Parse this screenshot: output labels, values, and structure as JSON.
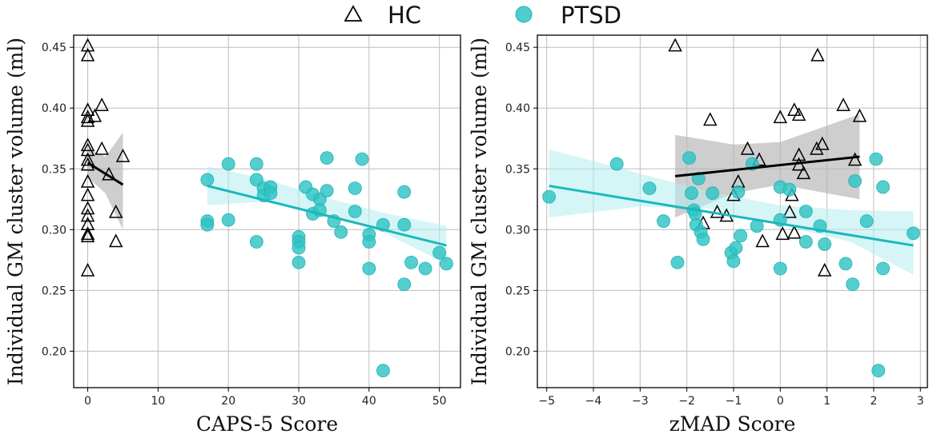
{
  "legend": {
    "hc_label": "HC",
    "ptsd_label": "PTSD",
    "hc_marker_icon": "open-triangle",
    "ptsd_marker_icon": "filled-circle"
  },
  "colors": {
    "hc": "#000000",
    "ptsd": "#30c3c3",
    "ptsd_line": "#1ab8bb",
    "ptsd_band": "#b3ecee",
    "hc_band": "#b3b3b3"
  },
  "chart_data": [
    {
      "type": "scatter",
      "id": "left",
      "xlabel": "CAPS-5 Score",
      "ylabel": "Individual GM cluster volume (ml)",
      "xlim": [
        -2,
        53
      ],
      "ylim": [
        0.17,
        0.46
      ],
      "xticks": [
        0,
        10,
        20,
        30,
        40,
        50
      ],
      "xticklabels": [
        "0",
        "10",
        "20",
        "30",
        "40",
        "50"
      ],
      "yticks": [
        0.2,
        0.25,
        0.3,
        0.35,
        0.4,
        0.45
      ],
      "yticklabels": [
        "0.20",
        "0.25",
        "0.30",
        "0.35",
        "0.40",
        "0.45"
      ],
      "grid": true,
      "series": [
        {
          "name": "HC",
          "marker": "triangle",
          "points": [
            [
              0,
              0.451
            ],
            [
              0,
              0.443
            ],
            [
              0,
              0.398
            ],
            [
              0,
              0.392
            ],
            [
              0,
              0.389
            ],
            [
              0,
              0.369
            ],
            [
              0,
              0.365
            ],
            [
              0,
              0.357
            ],
            [
              0,
              0.353
            ],
            [
              0,
              0.339
            ],
            [
              0,
              0.328
            ],
            [
              0,
              0.317
            ],
            [
              0,
              0.311
            ],
            [
              0,
              0.304
            ],
            [
              0,
              0.296
            ],
            [
              0,
              0.294
            ],
            [
              0,
              0.266
            ],
            [
              1,
              0.393
            ],
            [
              2,
              0.402
            ],
            [
              2,
              0.366
            ],
            [
              3,
              0.345
            ],
            [
              4,
              0.314
            ],
            [
              4,
              0.29
            ],
            [
              5,
              0.36
            ]
          ],
          "fit": {
            "x": [
              0,
              5
            ],
            "y": [
              0.355,
              0.337
            ]
          },
          "band": {
            "x": [
              0,
              2.5,
              5
            ],
            "lower": [
              0.343,
              0.33,
              0.3
            ],
            "upper": [
              0.367,
              0.36,
              0.38
            ]
          }
        },
        {
          "name": "PTSD",
          "marker": "circle",
          "points": [
            [
              17,
              0.341
            ],
            [
              17,
              0.307
            ],
            [
              17,
              0.304
            ],
            [
              20,
              0.354
            ],
            [
              20,
              0.308
            ],
            [
              24,
              0.354
            ],
            [
              24,
              0.341
            ],
            [
              24,
              0.29
            ],
            [
              25,
              0.334
            ],
            [
              25,
              0.328
            ],
            [
              26,
              0.335
            ],
            [
              26,
              0.33
            ],
            [
              30,
              0.294
            ],
            [
              30,
              0.29
            ],
            [
              30,
              0.285
            ],
            [
              30,
              0.273
            ],
            [
              31,
              0.335
            ],
            [
              32,
              0.313
            ],
            [
              32,
              0.329
            ],
            [
              33,
              0.325
            ],
            [
              33,
              0.316
            ],
            [
              34,
              0.359
            ],
            [
              34,
              0.332
            ],
            [
              35,
              0.307
            ],
            [
              36,
              0.298
            ],
            [
              38,
              0.334
            ],
            [
              38,
              0.315
            ],
            [
              39,
              0.358
            ],
            [
              40,
              0.296
            ],
            [
              40,
              0.29
            ],
            [
              40,
              0.268
            ],
            [
              42,
              0.304
            ],
            [
              42,
              0.184
            ],
            [
              45,
              0.331
            ],
            [
              45,
              0.304
            ],
            [
              45,
              0.255
            ],
            [
              46,
              0.273
            ],
            [
              48,
              0.268
            ],
            [
              50,
              0.281
            ],
            [
              51,
              0.272
            ]
          ],
          "fit": {
            "x": [
              17,
              51
            ],
            "y": [
              0.336,
              0.287
            ]
          },
          "band": {
            "x": [
              17,
              25,
              34,
              42,
              51
            ],
            "lower": [
              0.32,
              0.323,
              0.312,
              0.298,
              0.272
            ],
            "upper": [
              0.352,
              0.342,
              0.326,
              0.314,
              0.303
            ]
          }
        }
      ]
    },
    {
      "type": "scatter",
      "id": "right",
      "xlabel": "zMAD Score",
      "ylabel": "Individual GM cluster volume (ml)",
      "xlim": [
        -5.2,
        3.15
      ],
      "ylim": [
        0.17,
        0.46
      ],
      "xticks": [
        -5,
        -4,
        -3,
        -2,
        -1,
        0,
        1,
        2,
        3
      ],
      "xticklabels": [
        "−5",
        "−4",
        "−3",
        "−2",
        "−1",
        "0",
        "1",
        "2",
        "3"
      ],
      "yticks": [
        0.2,
        0.25,
        0.3,
        0.35,
        0.4,
        0.45
      ],
      "yticklabels": [
        "0.20",
        "0.25",
        "0.30",
        "0.35",
        "0.40",
        "0.45"
      ],
      "grid": true,
      "series": [
        {
          "name": "HC",
          "marker": "triangle",
          "points": [
            [
              -2.25,
              0.451
            ],
            [
              0.8,
              0.443
            ],
            [
              1.35,
              0.402
            ],
            [
              0.3,
              0.398
            ],
            [
              0.4,
              0.394
            ],
            [
              1.7,
              0.393
            ],
            [
              0,
              0.392
            ],
            [
              -1.5,
              0.39
            ],
            [
              0.9,
              0.37
            ],
            [
              0.78,
              0.366
            ],
            [
              -0.7,
              0.366
            ],
            [
              0.4,
              0.361
            ],
            [
              -0.45,
              0.357
            ],
            [
              1.6,
              0.357
            ],
            [
              0.4,
              0.353
            ],
            [
              0.5,
              0.346
            ],
            [
              -0.9,
              0.339
            ],
            [
              0.25,
              0.328
            ],
            [
              -1,
              0.328
            ],
            [
              -1.65,
              0.305
            ],
            [
              -1.35,
              0.314
            ],
            [
              0.2,
              0.314
            ],
            [
              -1.15,
              0.311
            ],
            [
              0.05,
              0.296
            ],
            [
              0.3,
              0.297
            ],
            [
              -0.38,
              0.29
            ],
            [
              0.95,
              0.266
            ]
          ],
          "fit": {
            "x": [
              -2.25,
              1.7
            ],
            "y": [
              0.344,
              0.36
            ]
          },
          "band": {
            "x": [
              -2.25,
              -1,
              0,
              1.7
            ],
            "lower": [
              0.31,
              0.33,
              0.337,
              0.325
            ],
            "upper": [
              0.378,
              0.37,
              0.372,
              0.395
            ]
          }
        },
        {
          "name": "PTSD",
          "marker": "circle",
          "points": [
            [
              -4.95,
              0.327
            ],
            [
              -3.5,
              0.354
            ],
            [
              -2.8,
              0.334
            ],
            [
              -2.5,
              0.307
            ],
            [
              -2.2,
              0.273
            ],
            [
              -1.95,
              0.359
            ],
            [
              -1.9,
              0.33
            ],
            [
              -1.85,
              0.316
            ],
            [
              -1.82,
              0.313
            ],
            [
              -1.8,
              0.304
            ],
            [
              -1.75,
              0.342
            ],
            [
              -1.7,
              0.298
            ],
            [
              -1.65,
              0.292
            ],
            [
              -1.45,
              0.33
            ],
            [
              -1.05,
              0.281
            ],
            [
              -1.0,
              0.274
            ],
            [
              -0.95,
              0.285
            ],
            [
              -0.9,
              0.331
            ],
            [
              -0.85,
              0.295
            ],
            [
              -0.6,
              0.354
            ],
            [
              -0.5,
              0.303
            ],
            [
              0.0,
              0.335
            ],
            [
              0.0,
              0.308
            ],
            [
              0.0,
              0.268
            ],
            [
              0.2,
              0.333
            ],
            [
              0.55,
              0.315
            ],
            [
              0.55,
              0.29
            ],
            [
              0.85,
              0.303
            ],
            [
              0.95,
              0.288
            ],
            [
              1.4,
              0.272
            ],
            [
              1.55,
              0.255
            ],
            [
              1.6,
              0.34
            ],
            [
              1.85,
              0.307
            ],
            [
              2.05,
              0.358
            ],
            [
              2.1,
              0.184
            ],
            [
              2.2,
              0.335
            ],
            [
              2.2,
              0.268
            ],
            [
              2.85,
              0.297
            ]
          ],
          "fit": {
            "x": [
              -4.95,
              2.85
            ],
            "y": [
              0.336,
              0.287
            ]
          },
          "band": {
            "x": [
              -4.95,
              -3,
              -1.5,
              0,
              1.5,
              2.85
            ],
            "lower": [
              0.31,
              0.319,
              0.317,
              0.304,
              0.29,
              0.263
            ],
            "upper": [
              0.366,
              0.346,
              0.331,
              0.32,
              0.316,
              0.315
            ]
          }
        }
      ]
    }
  ]
}
